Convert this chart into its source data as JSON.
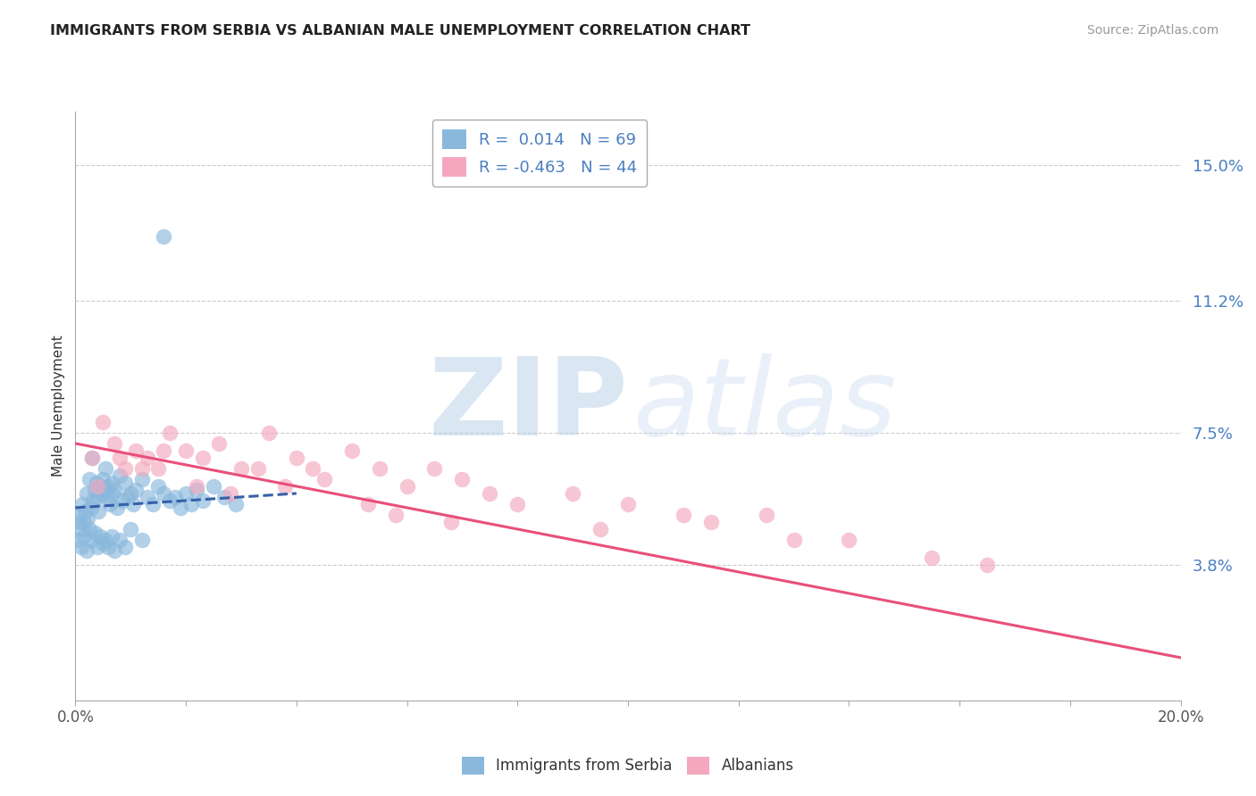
{
  "title": "IMMIGRANTS FROM SERBIA VS ALBANIAN MALE UNEMPLOYMENT CORRELATION CHART",
  "source": "Source: ZipAtlas.com",
  "ylabel": "Male Unemployment",
  "yticks": [
    3.8,
    7.5,
    11.2,
    15.0
  ],
  "ytick_labels": [
    "3.8%",
    "7.5%",
    "11.2%",
    "15.0%"
  ],
  "xlim": [
    0.0,
    20.0
  ],
  "ylim": [
    0.0,
    16.5
  ],
  "xticks": [
    0.0,
    2.0,
    4.0,
    6.0,
    8.0,
    10.0,
    12.0,
    14.0,
    16.0,
    18.0,
    20.0
  ],
  "xtick_labels_show": [
    "0.0%",
    "",
    "",
    "",
    "",
    "",
    "",
    "",
    "",
    "",
    "20.0%"
  ],
  "legend_entry1": "R =  0.014   N = 69",
  "legend_entry2": "R = -0.463   N = 44",
  "legend_label1": "Immigrants from Serbia",
  "legend_label2": "Albanians",
  "series1_color": "#89b8dc",
  "series2_color": "#f4a8be",
  "trend1_color": "#3560a8",
  "trend2_color": "#e8507a",
  "watermark_zip": "ZIP",
  "watermark_atlas": "atlas",
  "watermark_color": "#c8d8ea",
  "background_color": "#ffffff",
  "serbia_x": [
    0.05,
    0.08,
    0.1,
    0.12,
    0.15,
    0.18,
    0.2,
    0.22,
    0.25,
    0.28,
    0.3,
    0.32,
    0.35,
    0.38,
    0.4,
    0.42,
    0.45,
    0.48,
    0.5,
    0.52,
    0.55,
    0.58,
    0.6,
    0.62,
    0.65,
    0.68,
    0.7,
    0.75,
    0.8,
    0.85,
    0.9,
    0.95,
    1.0,
    1.05,
    1.1,
    1.2,
    1.3,
    1.4,
    1.5,
    1.6,
    1.7,
    1.8,
    1.9,
    2.0,
    2.1,
    2.2,
    2.3,
    2.5,
    2.7,
    2.9,
    0.05,
    0.1,
    0.15,
    0.2,
    0.25,
    0.3,
    0.35,
    0.4,
    0.45,
    0.5,
    0.55,
    0.6,
    0.65,
    0.7,
    0.8,
    0.9,
    1.0,
    1.2,
    1.6
  ],
  "serbia_y": [
    5.2,
    5.0,
    4.8,
    5.5,
    5.0,
    5.3,
    5.8,
    5.1,
    6.2,
    5.4,
    6.8,
    5.6,
    5.9,
    6.1,
    5.7,
    5.3,
    6.0,
    5.8,
    6.2,
    5.9,
    6.5,
    5.7,
    6.0,
    5.5,
    6.1,
    5.8,
    5.9,
    5.4,
    6.3,
    5.6,
    6.1,
    5.7,
    5.8,
    5.5,
    5.9,
    6.2,
    5.7,
    5.5,
    6.0,
    5.8,
    5.6,
    5.7,
    5.4,
    5.8,
    5.5,
    5.9,
    5.6,
    6.0,
    5.7,
    5.5,
    4.5,
    4.3,
    4.6,
    4.2,
    4.8,
    4.5,
    4.7,
    4.3,
    4.6,
    4.4,
    4.5,
    4.3,
    4.6,
    4.2,
    4.5,
    4.3,
    4.8,
    4.5,
    13.0
  ],
  "albania_x": [
    0.3,
    0.5,
    0.7,
    0.9,
    1.1,
    1.3,
    1.5,
    1.7,
    2.0,
    2.3,
    2.6,
    3.0,
    3.5,
    4.0,
    4.5,
    5.0,
    5.5,
    6.0,
    6.5,
    7.0,
    8.0,
    9.0,
    10.0,
    11.5,
    12.5,
    14.0,
    15.5,
    0.4,
    0.8,
    1.2,
    1.6,
    2.2,
    2.8,
    3.3,
    3.8,
    4.3,
    5.3,
    6.8,
    7.5,
    9.5,
    11.0,
    13.0,
    16.5,
    5.8
  ],
  "albania_y": [
    6.8,
    7.8,
    7.2,
    6.5,
    7.0,
    6.8,
    6.5,
    7.5,
    7.0,
    6.8,
    7.2,
    6.5,
    7.5,
    6.8,
    6.2,
    7.0,
    6.5,
    6.0,
    6.5,
    6.2,
    5.5,
    5.8,
    5.5,
    5.0,
    5.2,
    4.5,
    4.0,
    6.0,
    6.8,
    6.5,
    7.0,
    6.0,
    5.8,
    6.5,
    6.0,
    6.5,
    5.5,
    5.0,
    5.8,
    4.8,
    5.2,
    4.5,
    3.8,
    5.2
  ],
  "serbia_trend_x": [
    0.0,
    4.0
  ],
  "serbia_trend_y": [
    5.4,
    5.8
  ],
  "albania_trend_x": [
    0.0,
    20.0
  ],
  "albania_trend_y": [
    7.2,
    1.2
  ]
}
